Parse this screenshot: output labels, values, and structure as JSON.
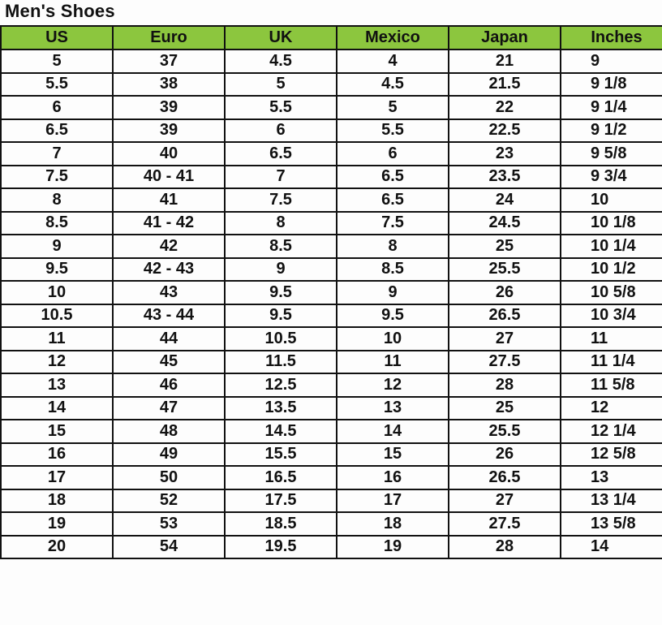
{
  "title": "Men's Shoes",
  "header_color": "#8cc63e",
  "columns": [
    "US",
    "Euro",
    "UK",
    "Mexico",
    "Japan",
    "Inches"
  ],
  "rows": [
    [
      "5",
      "37",
      "4.5",
      "4",
      "21",
      "9"
    ],
    [
      "5.5",
      "38",
      "5",
      "4.5",
      "21.5",
      "9 1/8"
    ],
    [
      "6",
      "39",
      "5.5",
      "5",
      "22",
      "9 1/4"
    ],
    [
      "6.5",
      "39",
      "6",
      "5.5",
      "22.5",
      "9 1/2"
    ],
    [
      "7",
      "40",
      "6.5",
      "6",
      "23",
      "9 5/8"
    ],
    [
      "7.5",
      "40 - 41",
      "7",
      "6.5",
      "23.5",
      "9 3/4"
    ],
    [
      "8",
      "41",
      "7.5",
      "6.5",
      "24",
      "10"
    ],
    [
      "8.5",
      "41 - 42",
      "8",
      "7.5",
      "24.5",
      "10 1/8"
    ],
    [
      "9",
      "42",
      "8.5",
      "8",
      "25",
      "10 1/4"
    ],
    [
      "9.5",
      "42 - 43",
      "9",
      "8.5",
      "25.5",
      "10 1/2"
    ],
    [
      "10",
      "43",
      "9.5",
      "9",
      "26",
      "10 5/8"
    ],
    [
      "10.5",
      "43 - 44",
      "9.5",
      "9.5",
      "26.5",
      "10 3/4"
    ],
    [
      "11",
      "44",
      "10.5",
      "10",
      "27",
      "11"
    ],
    [
      "12",
      "45",
      "11.5",
      "11",
      "27.5",
      "11 1/4"
    ],
    [
      "13",
      "46",
      "12.5",
      "12",
      "28",
      "11 5/8"
    ],
    [
      "14",
      "47",
      "13.5",
      "13",
      "25",
      "12"
    ],
    [
      "15",
      "48",
      "14.5",
      "14",
      "25.5",
      "12 1/4"
    ],
    [
      "16",
      "49",
      "15.5",
      "15",
      "26",
      "12 5/8"
    ],
    [
      "17",
      "50",
      "16.5",
      "16",
      "26.5",
      "13"
    ],
    [
      "18",
      "52",
      "17.5",
      "17",
      "27",
      "13 1/4"
    ],
    [
      "19",
      "53",
      "18.5",
      "18",
      "27.5",
      "13 5/8"
    ],
    [
      "20",
      "54",
      "19.5",
      "19",
      "28",
      "14"
    ]
  ]
}
